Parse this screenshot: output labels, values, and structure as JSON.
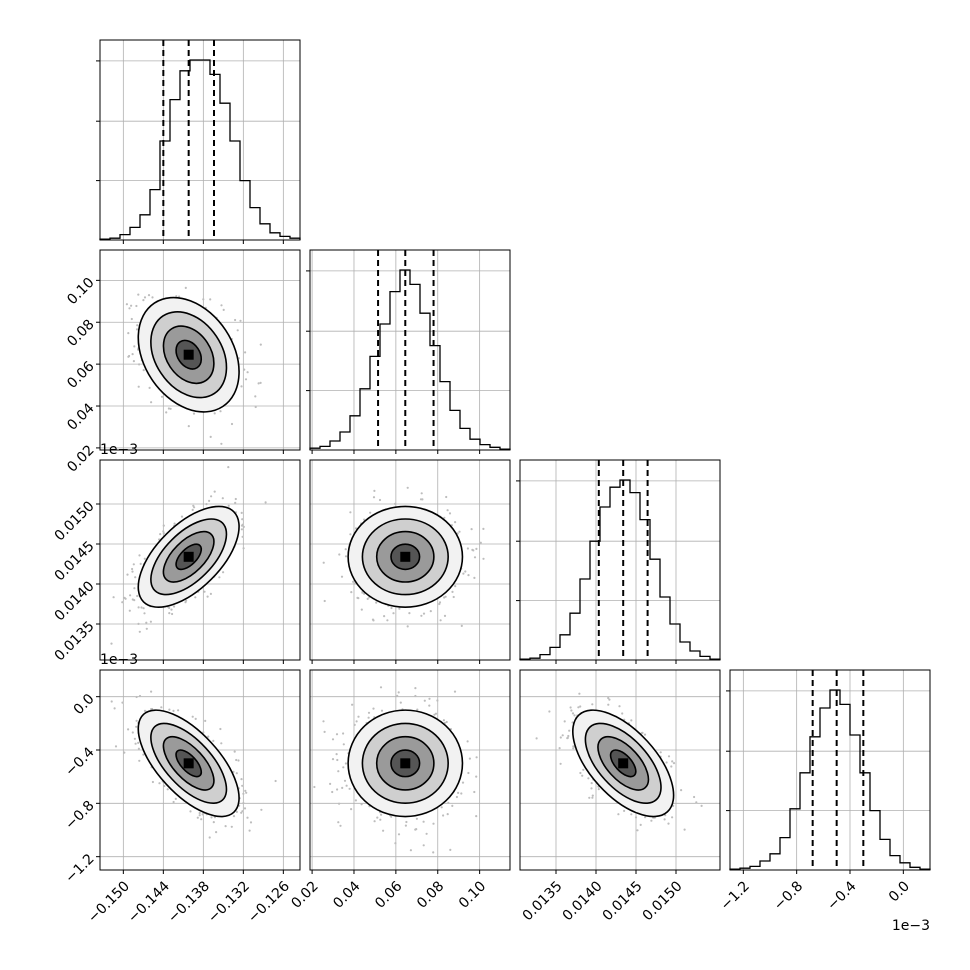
{
  "chart_data": {
    "type": "corner",
    "parameters": [
      {
        "range": [
          -0.1535,
          -0.1235
        ],
        "ticks": [
          -0.15,
          -0.144,
          -0.138,
          -0.132,
          -0.126
        ],
        "tick_labels": [
          "−0.150",
          "−0.144",
          "−0.138",
          "−0.132",
          "−0.126"
        ],
        "quantiles": [
          -0.144,
          -0.1402,
          -0.1364
        ],
        "mean": -0.1402,
        "sd": 0.0036,
        "offset_label": ""
      },
      {
        "range": [
          0.019,
          0.1145
        ],
        "ticks": [
          0.02,
          0.04,
          0.06,
          0.08,
          0.1
        ],
        "tick_labels": [
          "0.02",
          "0.04",
          "0.06",
          "0.08",
          "0.10"
        ],
        "quantiles": [
          0.0515,
          0.0645,
          0.078
        ],
        "mean": 0.0645,
        "sd": 0.013,
        "offset_label": ""
      },
      {
        "range": [
          0.01305,
          0.01555
        ],
        "ticks": [
          0.0135,
          0.014,
          0.0145,
          0.015
        ],
        "tick_labels": [
          "0.0135",
          "0.0140",
          "0.0145",
          "0.0150"
        ],
        "quantiles": [
          0.014035,
          0.01434,
          0.014645
        ],
        "mean": 0.01434,
        "sd": 0.0003,
        "offset_label": "1e−3"
      },
      {
        "range": [
          -1.3,
          0.2
        ],
        "ticks": [
          -1.2,
          -0.8,
          -0.4,
          0.0
        ],
        "tick_labels": [
          "−1.2",
          "−0.8",
          "−0.4",
          "0.0"
        ],
        "quantiles": [
          -0.68,
          -0.5,
          -0.3
        ],
        "mean": -0.5,
        "sd": 0.19,
        "offset_label": "1e−3"
      }
    ],
    "histograms": [
      [
        0.5,
        1,
        3,
        7,
        14,
        28,
        55,
        78,
        94,
        100,
        100,
        92,
        76,
        55,
        33,
        18,
        9,
        4,
        2,
        1
      ],
      [
        1,
        2,
        5,
        10,
        19,
        34,
        52,
        70,
        88,
        100,
        92,
        76,
        58,
        38,
        22,
        12,
        6,
        3,
        1.5,
        0.5
      ],
      [
        0.5,
        1,
        3,
        7,
        14,
        26,
        45,
        66,
        85,
        96,
        100,
        93,
        78,
        56,
        35,
        20,
        10,
        5,
        2,
        0.5
      ],
      [
        0.5,
        1,
        2,
        5,
        9,
        18,
        34,
        54,
        74,
        90,
        100,
        92,
        75,
        54,
        33,
        17,
        8,
        4,
        1.5,
        0.5
      ]
    ],
    "correlations": {
      "1-0": -0.3,
      "2-0": 0.6,
      "2-1": 0.0,
      "3-0": -0.65,
      "3-1": 0.0,
      "3-2": -0.6
    },
    "contour_levels_sigma": [
      0.5,
      1.0,
      1.5,
      2.0
    ],
    "grid": true,
    "colors": {
      "hist": "#000000",
      "contour": "#000000",
      "points": "#bdbdbd",
      "grid": "#b0b0b0"
    }
  }
}
